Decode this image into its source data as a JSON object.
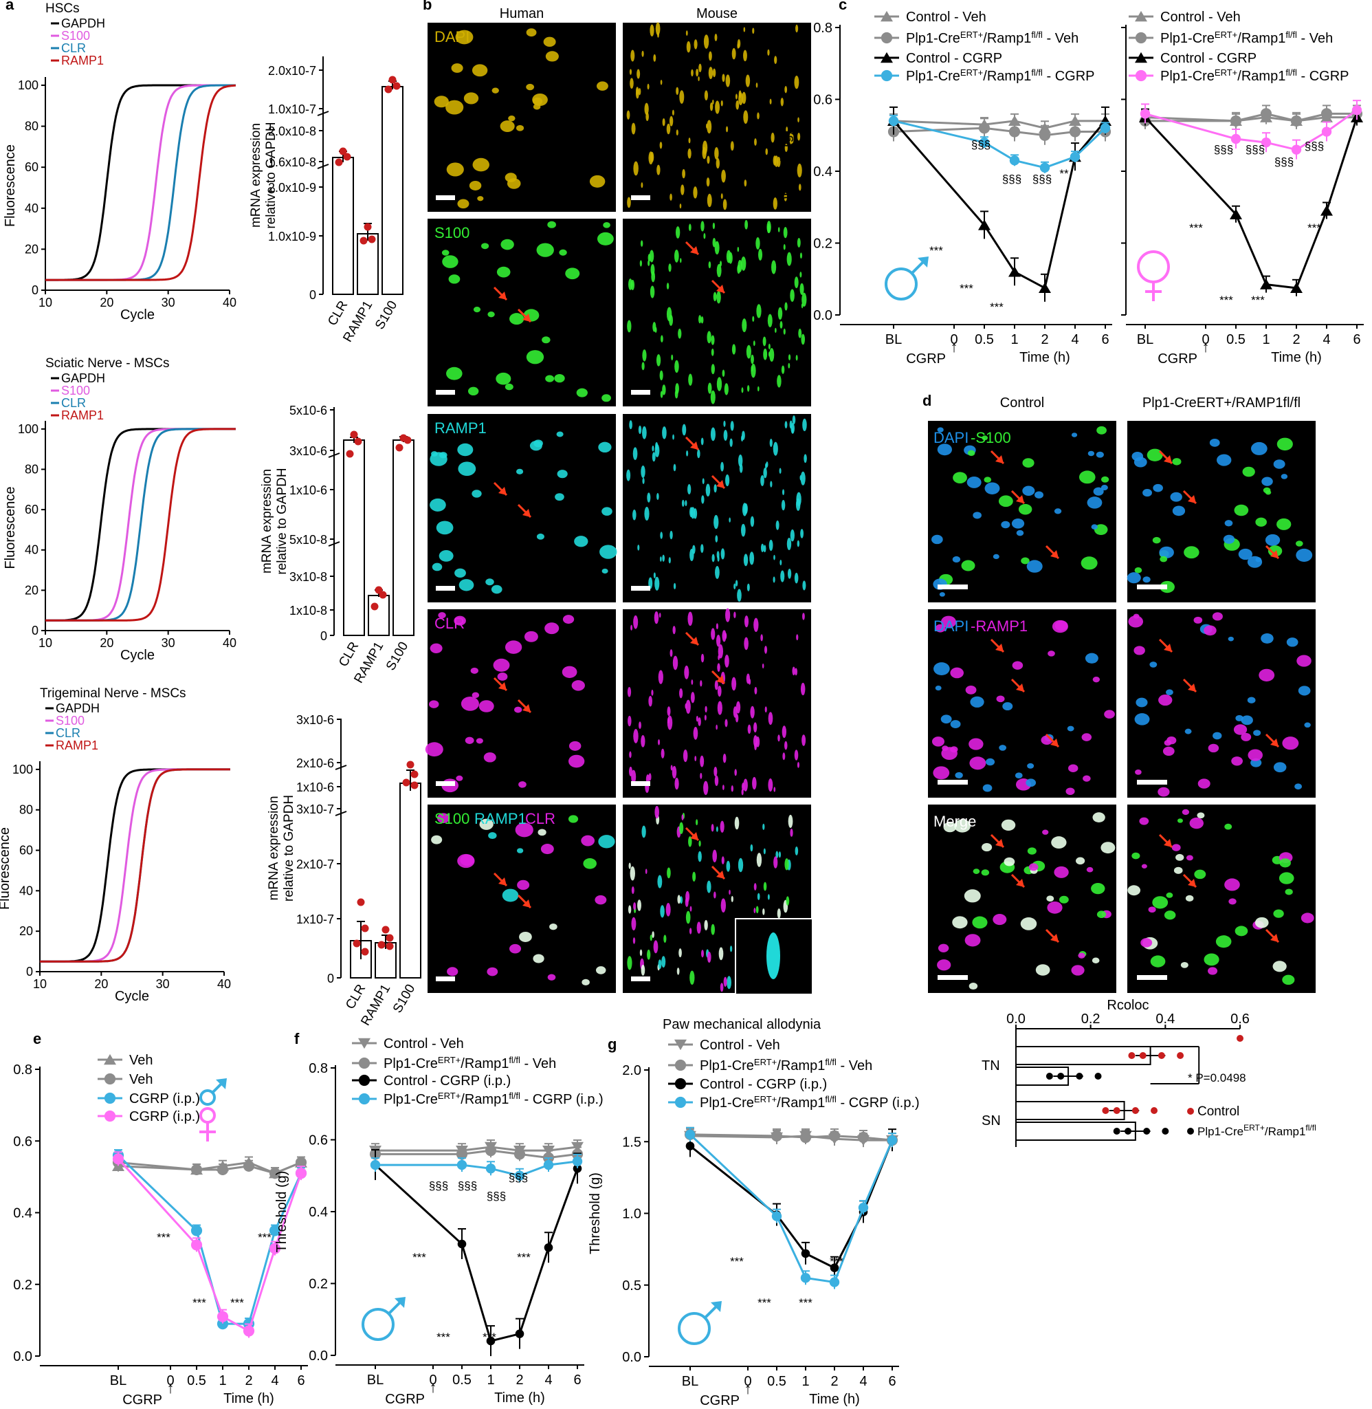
{
  "panel_letters": [
    "a",
    "b",
    "c",
    "d",
    "e",
    "f",
    "g"
  ],
  "colors": {
    "gapdh": "#000000",
    "s100": "#e05be0",
    "clr": "#1a7fb0",
    "ramp1": "#c01515",
    "dot": "#c81e1e",
    "control_veh": "#8c8c8c",
    "veh_ko": "#8c8c8c",
    "control_cgrp": "#000000",
    "ko_cgrp": "#3bb0e0",
    "female": "#ff6ef5",
    "male": "#3bb0e0",
    "dapi": "#d1b000",
    "s100_ch": "#33ee33",
    "ramp1_ch": "#20d8d8",
    "clr_ch": "#e020e0",
    "arrow": "#ff3b1a"
  },
  "panel_a": {
    "panels": [
      {
        "title": "HSCs",
        "legend": [
          "GAPDH",
          "S100",
          "CLR",
          "RAMP1"
        ],
        "ylabel": "Fluorescence",
        "xlabel": "Cycle",
        "xticks": [
          "10",
          "20",
          "30",
          "40"
        ],
        "yticks": [
          "0",
          "20",
          "40",
          "60",
          "80",
          "100"
        ]
      },
      {
        "title": "Sciatic Nerve - MSCs",
        "legend": [
          "GAPDH",
          "S100",
          "CLR",
          "RAMP1"
        ],
        "ylabel": "Fluorescence",
        "xlabel": "Cycle",
        "xticks": [
          "10",
          "20",
          "30",
          "40"
        ],
        "yticks": [
          "0",
          "20",
          "40",
          "60",
          "80",
          "100"
        ]
      },
      {
        "title": "Trigeminal Nerve - MSCs",
        "legend": [
          "GAPDH",
          "S100",
          "CLR",
          "RAMP1"
        ],
        "ylabel": "Fluorescence",
        "xlabel": "Cycle",
        "xticks": [
          "10",
          "20",
          "30",
          "40"
        ],
        "yticks": [
          "0",
          "20",
          "40",
          "60",
          "80",
          "100"
        ]
      }
    ],
    "bars": [
      {
        "ylabel": [
          "mRNA expression",
          "relative to GAPDH"
        ],
        "categories": [
          "CLR",
          "RAMP1",
          "S100"
        ],
        "yticks": [
          "0",
          "1.0x10-9",
          "2.0x10-9",
          "1.6x10-8",
          "2.0x10-8",
          "1.0x10-7",
          "2.0x10-7"
        ]
      },
      {
        "ylabel": [
          "mRNA expression",
          "relative to GAPDH"
        ],
        "categories": [
          "CLR",
          "RAMP1",
          "S100"
        ],
        "yticks": [
          "0",
          "1x10-8",
          "3x10-8",
          "5x10-8",
          "1x10-6",
          "3x10-6",
          "5x10-6"
        ]
      },
      {
        "ylabel": [
          "mRNA expression",
          "relative to GAPDH"
        ],
        "categories": [
          "CLR",
          "RAMP1",
          "S100"
        ],
        "yticks": [
          "0",
          "1x10-7",
          "2x10-7",
          "3x10-7",
          "1x10-6",
          "2x10-6",
          "3x10-6"
        ]
      }
    ]
  },
  "panel_b": {
    "columns": [
      "Human",
      "Mouse"
    ],
    "rows": [
      "DAPI",
      "S100",
      "RAMP1",
      "CLR",
      "S100 RAMP1 CLR"
    ]
  },
  "panel_d": {
    "columns": [
      "Control",
      "Plp1-CreERT+/RAMP1fl/fl"
    ],
    "rows": [
      "DAPI-S100",
      "DAPI-RAMP1",
      "Merge"
    ]
  },
  "time_axis": {
    "labels": [
      "BL",
      "0",
      "0.5",
      "1",
      "2",
      "4",
      "6"
    ],
    "xlabel": "Time  (h)",
    "stim": "CGRP"
  },
  "chart_data": [
    {
      "type": "line",
      "panel": "c-left",
      "ylabel": "Threshold (g)",
      "ylim": [
        0,
        0.8
      ],
      "yticks": [
        "0.0",
        "0.2",
        "0.4",
        "0.6",
        "0.8"
      ],
      "x": [
        "BL",
        "0.5",
        "1",
        "2",
        "4",
        "6"
      ],
      "series": [
        {
          "name": "Control - Veh",
          "values": [
            0.54,
            0.53,
            0.54,
            0.52,
            0.54,
            0.54
          ]
        },
        {
          "name": "Plp1-CreERT+/Ramp1fl/fl - Veh",
          "values": [
            0.51,
            0.52,
            0.51,
            0.5,
            0.51,
            0.51
          ]
        },
        {
          "name": "Control - CGRP",
          "values": [
            0.54,
            0.25,
            0.12,
            0.075,
            0.44,
            0.54
          ]
        },
        {
          "name": "Plp1-CreERT+/Ramp1fl/fl - CGRP",
          "values": [
            0.54,
            0.48,
            0.43,
            0.41,
            0.44,
            0.52
          ]
        }
      ],
      "annotations": [
        "***",
        "***",
        "***",
        "**",
        "§§§",
        "§§§",
        "§§§"
      ]
    },
    {
      "type": "line",
      "panel": "c-right",
      "ylim": [
        0,
        0.8
      ],
      "x": [
        "BL",
        "0.5",
        "1",
        "2",
        "4",
        "6"
      ],
      "series": [
        {
          "name": "Control - Veh",
          "values": [
            0.55,
            0.54,
            0.55,
            0.54,
            0.55,
            0.55
          ]
        },
        {
          "name": "Plp1-CreERT+/Ramp1fl/fl - Veh",
          "values": [
            0.54,
            0.54,
            0.56,
            0.54,
            0.56,
            0.56
          ]
        },
        {
          "name": "Control - CGRP",
          "values": [
            0.55,
            0.28,
            0.085,
            0.075,
            0.29,
            0.55
          ]
        },
        {
          "name": "Plp1-CreERT+/Ramp1fl/fl - CGRP",
          "values": [
            0.56,
            0.49,
            0.48,
            0.46,
            0.51,
            0.57
          ]
        }
      ],
      "annotations": [
        "***",
        "***",
        "***",
        "***",
        "§§§",
        "§§§",
        "§§§",
        "§§§"
      ]
    },
    {
      "type": "line",
      "panel": "e",
      "ylabel": "Threshold (g)",
      "ylim": [
        0,
        0.8
      ],
      "yticks": [
        "0.0",
        "0.2",
        "0.4",
        "0.6",
        "0.8"
      ],
      "x": [
        "BL",
        "0.5",
        "1",
        "2",
        "4",
        "6"
      ],
      "series": [
        {
          "name": "Veh",
          "values": [
            0.53,
            0.52,
            0.53,
            0.54,
            0.51,
            0.54
          ]
        },
        {
          "name": "Veh",
          "values": [
            0.54,
            0.52,
            0.52,
            0.53,
            0.51,
            0.54
          ]
        },
        {
          "name": "CGRP (i.p.)",
          "values": [
            0.56,
            0.35,
            0.09,
            0.09,
            0.35,
            0.51
          ]
        },
        {
          "name": "CGRP (i.p.)",
          "values": [
            0.55,
            0.31,
            0.11,
            0.07,
            0.3,
            0.51
          ]
        }
      ],
      "annotations": [
        "***",
        "***",
        "***",
        "***"
      ]
    },
    {
      "type": "line",
      "panel": "f",
      "ylabel": "Threshold (g)",
      "ylim": [
        0,
        0.8
      ],
      "yticks": [
        "0.0",
        "0.2",
        "0.4",
        "0.6",
        "0.8"
      ],
      "x": [
        "BL",
        "0.5",
        "1",
        "2",
        "4",
        "6"
      ],
      "series": [
        {
          "name": "Control - Veh",
          "values": [
            0.57,
            0.57,
            0.58,
            0.57,
            0.57,
            0.58
          ]
        },
        {
          "name": "Plp1-CreERT+/Ramp1fl/fl - Veh",
          "values": [
            0.56,
            0.56,
            0.57,
            0.56,
            0.55,
            0.56
          ]
        },
        {
          "name": "Control - CGRP (i.p.)",
          "values": [
            0.53,
            0.31,
            0.04,
            0.06,
            0.3,
            0.52
          ]
        },
        {
          "name": "Plp1-CreERT+/Ramp1fl/fl - CGRP (i.p.)",
          "values": [
            0.53,
            0.53,
            0.52,
            0.5,
            0.53,
            0.54
          ]
        }
      ],
      "annotations": [
        "***",
        "***",
        "***",
        "***",
        "§§§",
        "§§§",
        "§§§",
        "§§§"
      ]
    },
    {
      "type": "line",
      "panel": "g",
      "title": "Paw mechanical allodynia",
      "ylabel": "Threshold (g)",
      "ylim": [
        0,
        2.0
      ],
      "yticks": [
        "0.0",
        "0.5",
        "1.0",
        "1.5",
        "2.0"
      ],
      "x": [
        "BL",
        "0.5",
        "1",
        "2",
        "4",
        "6"
      ],
      "series": [
        {
          "name": "Control - Veh",
          "values": [
            1.54,
            1.53,
            1.54,
            1.52,
            1.51,
            1.51
          ]
        },
        {
          "name": "Plp1-CreERT+/Ramp1fl/fl - Veh",
          "values": [
            1.55,
            1.54,
            1.53,
            1.54,
            1.53,
            1.51
          ]
        },
        {
          "name": "Control - CGRP (i.p.)",
          "values": [
            1.47,
            0.99,
            0.72,
            0.62,
            1.01,
            1.51
          ]
        },
        {
          "name": "Plp1-CreERT+/Ramp1fl/fl - CGRP (i.p.)",
          "values": [
            1.55,
            0.98,
            0.55,
            0.52,
            1.04,
            1.51
          ]
        }
      ],
      "annotations": [
        "***",
        "***",
        "***",
        "***"
      ]
    },
    {
      "type": "bar",
      "panel": "d-quant",
      "xlabel": "Rcoloc",
      "xlim": [
        0,
        0.6
      ],
      "xticks": [
        "0.0",
        "0.2",
        "0.4",
        "0.6"
      ],
      "categories": [
        "TN",
        "SN"
      ],
      "series": [
        {
          "name": "Control",
          "values": [
            0.36,
            0.29
          ]
        },
        {
          "name": "Plp1-CreERT+/Ramp1fl/fl",
          "values": [
            0.14,
            0.32
          ]
        }
      ],
      "annotation": "*  P=0.0498"
    }
  ]
}
